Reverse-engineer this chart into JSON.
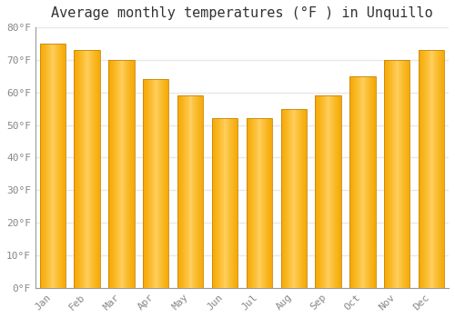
{
  "title": "Average monthly temperatures (°F ) in Unquillo",
  "months": [
    "Jan",
    "Feb",
    "Mar",
    "Apr",
    "May",
    "Jun",
    "Jul",
    "Aug",
    "Sep",
    "Oct",
    "Nov",
    "Dec"
  ],
  "values": [
    75,
    73,
    70,
    64,
    59,
    52,
    52,
    55,
    59,
    65,
    70,
    73
  ],
  "bar_color_light": "#FFD060",
  "bar_color_dark": "#F5A800",
  "bar_color_edge": "#C8860A",
  "ylim": [
    0,
    80
  ],
  "yticks": [
    0,
    10,
    20,
    30,
    40,
    50,
    60,
    70,
    80
  ],
  "ytick_labels": [
    "0°F",
    "10°F",
    "20°F",
    "30°F",
    "40°F",
    "50°F",
    "60°F",
    "70°F",
    "80°F"
  ],
  "background_color": "#FFFFFF",
  "grid_color": "#E8E8E8",
  "title_fontsize": 11,
  "tick_fontsize": 8,
  "font_family": "monospace"
}
